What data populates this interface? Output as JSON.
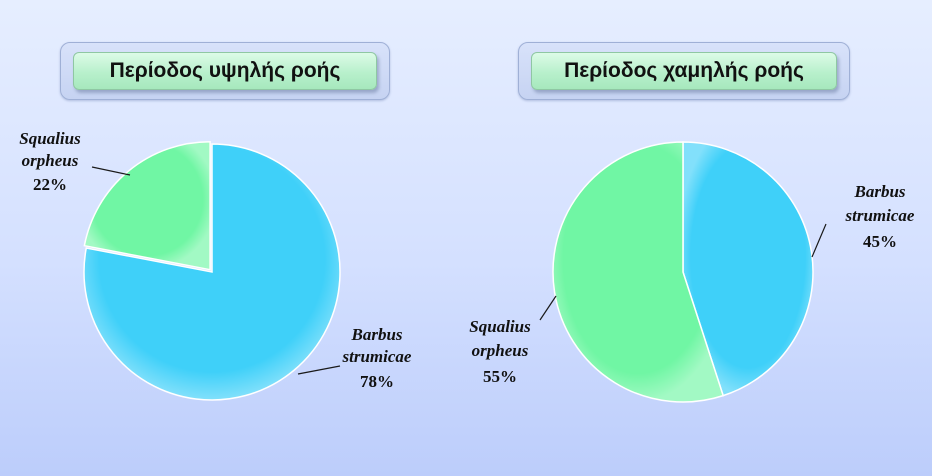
{
  "chart_data": [
    {
      "type": "pie",
      "title": "Περίοδος υψηλής ροής",
      "slices": [
        {
          "name_line1": "Barbus",
          "name_line2": "strumicae",
          "value": 78,
          "percent_label": "78%",
          "color": "#3fd0f9"
        },
        {
          "name_line1": "Squalius",
          "name_line2": "orpheus",
          "value": 22,
          "percent_label": "22%",
          "color": "#70f6a4"
        }
      ]
    },
    {
      "type": "pie",
      "title": "Περίοδος χαμηλής ροής",
      "slices": [
        {
          "name_line1": "Barbus",
          "name_line2": "strumicae",
          "value": 45,
          "percent_label": "45%",
          "color": "#3fd0f9"
        },
        {
          "name_line1": "Squalius",
          "name_line2": "orpheus",
          "value": 55,
          "percent_label": "55%",
          "color": "#70f6a4"
        }
      ]
    }
  ]
}
